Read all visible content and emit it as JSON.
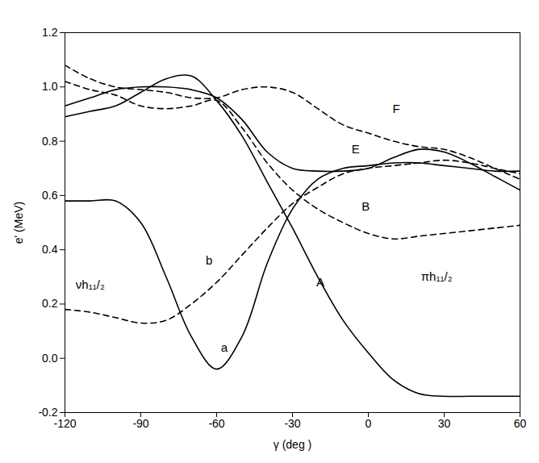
{
  "chart_data": {
    "type": "line",
    "x_label": "γ (deg )",
    "y_label": "e' (MeV)",
    "xlim": [
      -120,
      60
    ],
    "xticks": [
      -120,
      -90,
      -60,
      -30,
      0,
      30,
      60
    ],
    "ylim": [
      -0.2,
      1.2
    ],
    "yticks": [
      -0.2,
      {
        "value": 0,
        "label": "0.0"
      },
      0.2,
      0.4,
      0.6,
      0.8,
      {
        "value": 1,
        "label": "1.0"
      },
      1.2
    ],
    "color": "#000000",
    "x": [
      -120,
      -110,
      -100,
      -90,
      -80,
      -70,
      -60,
      -50,
      -40,
      -30,
      -20,
      -10,
      0,
      10,
      20,
      30,
      40,
      50,
      60
    ],
    "series": [
      {
        "name": "a",
        "line_style": "solid",
        "label_x": -57,
        "label_y": 0.04,
        "values": [
          0.58,
          0.58,
          0.58,
          0.5,
          0.3,
          0.08,
          -0.04,
          0.08,
          0.35,
          0.55,
          0.66,
          0.7,
          0.71,
          0.72,
          0.72,
          0.71,
          0.7,
          0.69,
          0.69
        ]
      },
      {
        "name": "A",
        "line_style": "solid",
        "label_x": -19,
        "label_y": 0.28,
        "values": [
          0.89,
          0.91,
          0.93,
          0.98,
          1.03,
          1.04,
          0.95,
          0.82,
          0.65,
          0.48,
          0.3,
          0.14,
          0.02,
          -0.08,
          -0.13,
          -0.14,
          -0.14,
          -0.14,
          -0.14
        ]
      },
      {
        "name": "E",
        "line_style": "solid",
        "label_x": -5,
        "label_y": 0.77,
        "values": [
          0.93,
          0.96,
          0.99,
          1.0,
          1.0,
          0.99,
          0.96,
          0.88,
          0.76,
          0.7,
          0.69,
          0.69,
          0.7,
          0.74,
          0.77,
          0.76,
          0.72,
          0.67,
          0.62
        ]
      },
      {
        "name": "F",
        "line_style": "dashed",
        "label_x": 11,
        "label_y": 0.92,
        "values": [
          1.08,
          1.03,
          1.0,
          0.99,
          0.98,
          0.96,
          0.96,
          0.99,
          1.0,
          0.98,
          0.92,
          0.86,
          0.83,
          0.8,
          0.78,
          0.77,
          0.74,
          0.7,
          0.66
        ]
      },
      {
        "name": "B",
        "line_style": "dashed",
        "label_x": -1,
        "label_y": 0.56,
        "values": [
          1.02,
          0.99,
          0.97,
          0.93,
          0.92,
          0.93,
          0.95,
          0.85,
          0.72,
          0.62,
          0.55,
          0.5,
          0.46,
          0.44,
          0.45,
          0.46,
          0.47,
          0.48,
          0.49
        ]
      },
      {
        "name": "b",
        "line_style": "dashed",
        "label_x": -63,
        "label_y": 0.36,
        "values": [
          0.18,
          0.17,
          0.15,
          0.13,
          0.14,
          0.2,
          0.28,
          0.38,
          0.48,
          0.57,
          0.63,
          0.68,
          0.7,
          0.71,
          0.72,
          0.73,
          0.72,
          0.7,
          0.68
        ]
      }
    ],
    "annotations": [
      {
        "text": "νh₁₁/₂",
        "x": -110,
        "y": 0.27
      },
      {
        "text": "πh₁₁/₂",
        "x": 27,
        "y": 0.3
      }
    ]
  }
}
